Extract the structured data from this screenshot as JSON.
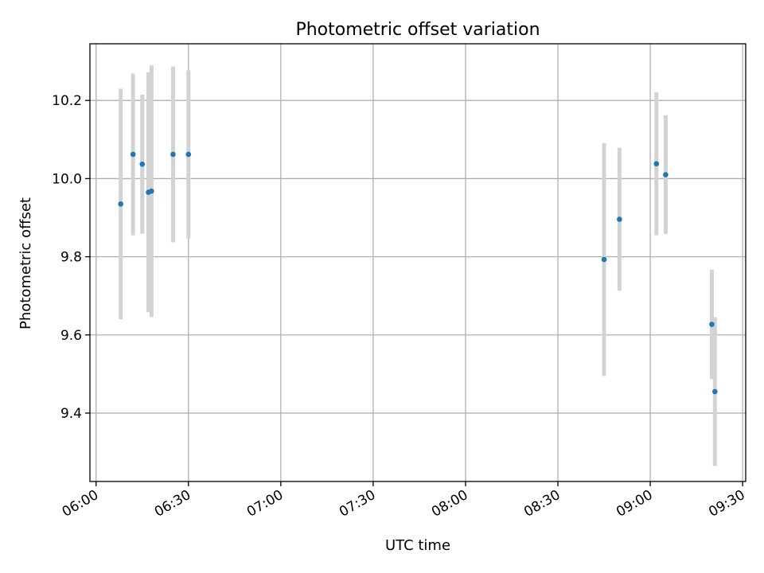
{
  "chart_data": {
    "type": "scatter",
    "title": "Photometric offset variation",
    "xlabel": "UTC time",
    "ylabel": "Photometric offset",
    "x_ticks": [
      "06:00",
      "06:30",
      "07:00",
      "07:30",
      "08:00",
      "08:30",
      "09:00",
      "09:30"
    ],
    "y_ticks": [
      "9.4",
      "9.6",
      "9.8",
      "10.0",
      "10.2"
    ],
    "xlim": [
      "05:58",
      "09:31"
    ],
    "ylim": [
      9.225,
      10.345
    ],
    "grid": true,
    "legend": "none",
    "colors": {
      "points": "#1f77b4",
      "error_bars": "#d3d3d3",
      "grid": "#b0b0b0"
    },
    "series": [
      {
        "points": [
          {
            "x": "06:08",
            "y": 9.935,
            "err": 0.295
          },
          {
            "x": "06:12",
            "y": 10.062,
            "err": 0.207
          },
          {
            "x": "06:15",
            "y": 10.037,
            "err": 0.178
          },
          {
            "x": "06:17",
            "y": 9.965,
            "err": 0.307
          },
          {
            "x": "06:18",
            "y": 9.968,
            "err": 0.322
          },
          {
            "x": "06:25",
            "y": 10.062,
            "err": 0.225
          },
          {
            "x": "06:30",
            "y": 10.062,
            "err": 0.215
          },
          {
            "x": "08:45",
            "y": 9.793,
            "err": 0.298
          },
          {
            "x": "08:50",
            "y": 9.896,
            "err": 0.183
          },
          {
            "x": "09:02",
            "y": 10.038,
            "err": 0.183
          },
          {
            "x": "09:05",
            "y": 10.01,
            "err": 0.152
          },
          {
            "x": "09:20",
            "y": 9.627,
            "err": 0.14
          },
          {
            "x": "09:21",
            "y": 9.455,
            "err": 0.19
          }
        ]
      }
    ]
  }
}
